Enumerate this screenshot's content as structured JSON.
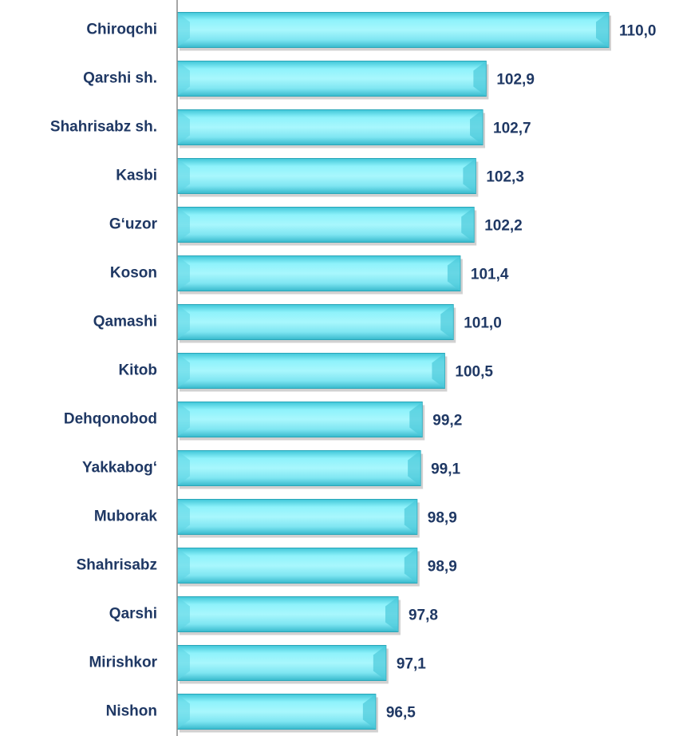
{
  "chart_data": {
    "type": "bar",
    "orientation": "horizontal",
    "categories": [
      "Chiroqchi",
      "Qarshi sh.",
      "Shahrisabz sh.",
      "Kasbi",
      "G‘uzor",
      "Koson",
      "Qamashi",
      "Kitob",
      "Dehqonobod",
      "Yakkabog‘",
      "Muborak",
      "Shahrisabz",
      "Qarshi",
      "Mirishkor",
      "Nishon"
    ],
    "values": [
      110.0,
      102.9,
      102.7,
      102.3,
      102.2,
      101.4,
      101.0,
      100.5,
      99.2,
      99.1,
      98.9,
      98.9,
      97.8,
      97.1,
      96.5
    ],
    "value_labels": [
      "110,0",
      "102,9",
      "102,7",
      "102,3",
      "102,2",
      "101,4",
      "101,0",
      "100,5",
      "99,2",
      "99,1",
      "98,9",
      "98,9",
      "97,8",
      "97,1",
      "96,5"
    ],
    "color": "#7fe9f5",
    "xlim": [
      85,
      110
    ]
  }
}
